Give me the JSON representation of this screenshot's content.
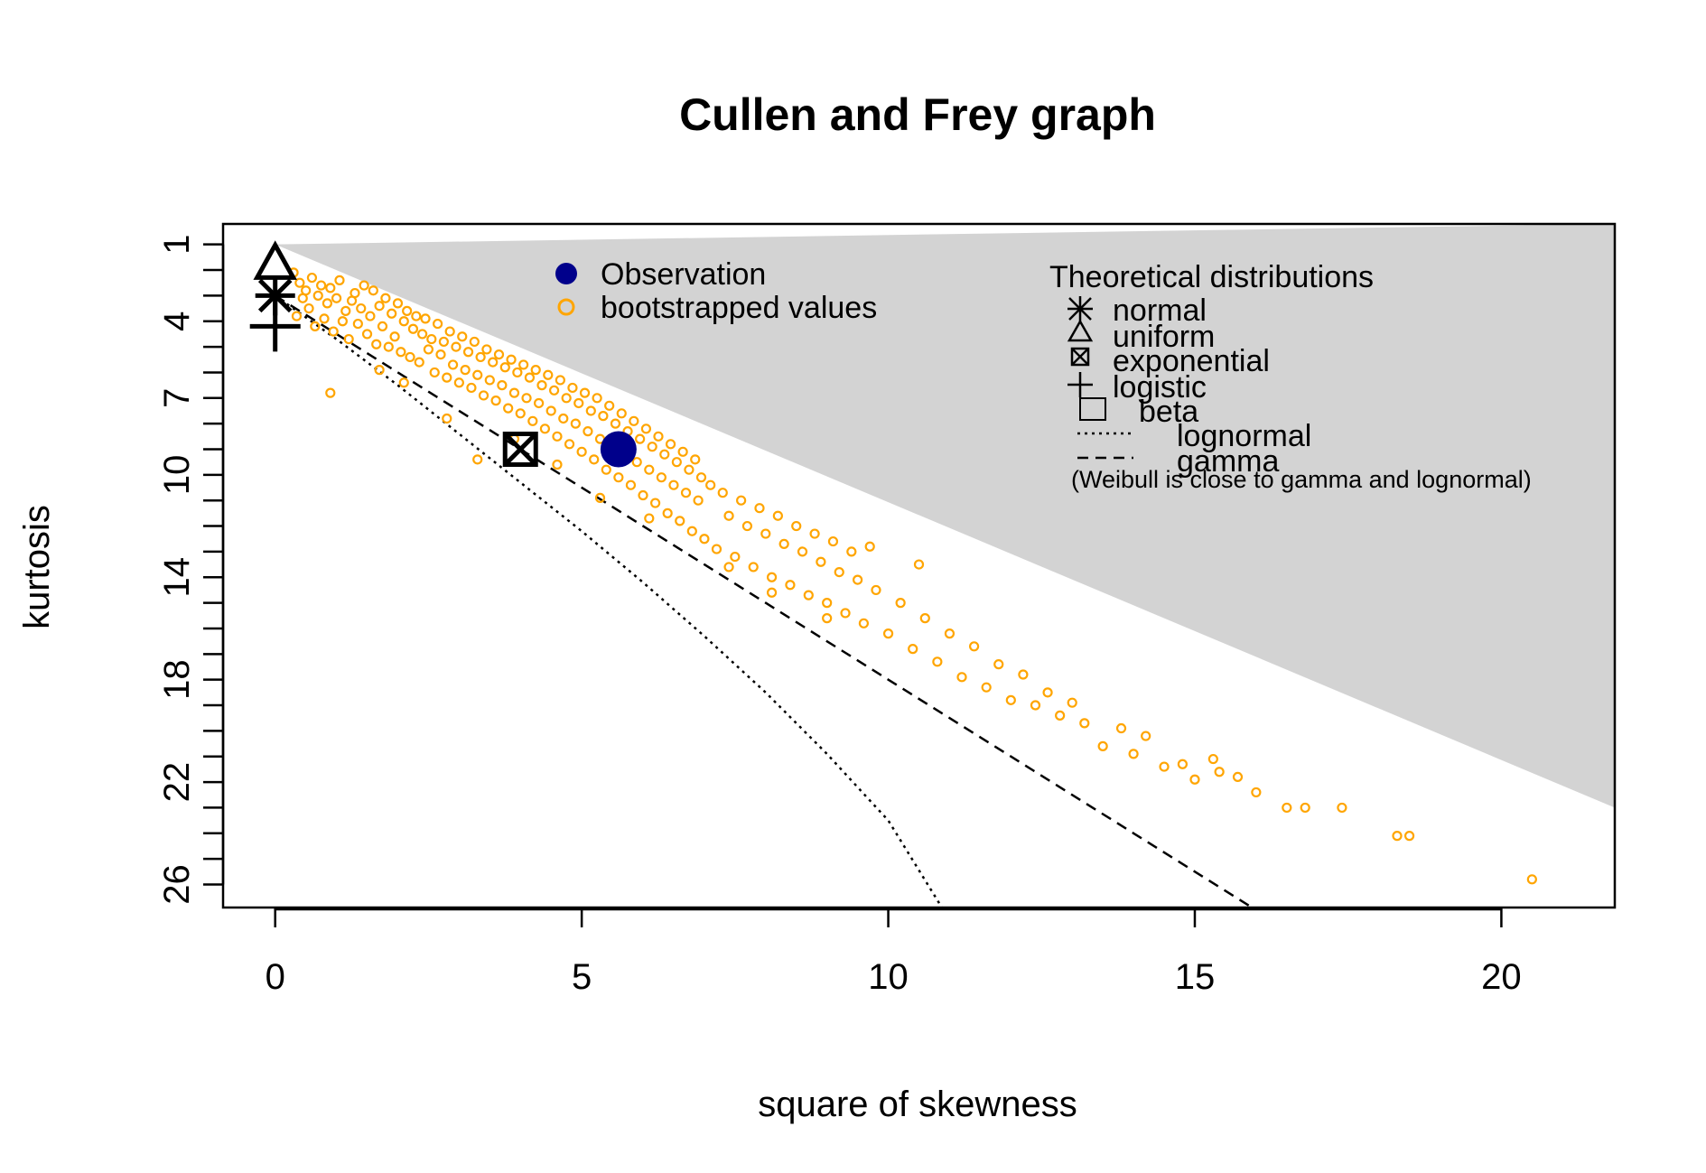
{
  "chart_data": {
    "type": "scatter",
    "title": "Cullen and Frey graph",
    "xlabel": "square of skewness",
    "ylabel": "kurtosis",
    "xlim": [
      -0.85,
      21.85
    ],
    "ylim": [
      26.9,
      0.2
    ],
    "y_reversed": true,
    "grid": false,
    "x_ticks": [
      0,
      5,
      10,
      15,
      20
    ],
    "y_ticks": [
      1,
      4,
      7,
      10,
      14,
      18,
      22,
      26
    ],
    "y_minor_ticks": [
      2,
      3,
      5,
      6,
      8,
      9,
      11,
      12,
      13,
      15,
      16,
      17,
      19,
      20,
      21,
      23,
      24,
      25
    ],
    "observation": {
      "name": "Observation",
      "x": 5.6,
      "y": 9.0,
      "color": "#00008B"
    },
    "bootstrap": {
      "name": "bootstrapped values",
      "color": "#FFA500",
      "points": [
        [
          0.3,
          2.1
        ],
        [
          0.35,
          3.8
        ],
        [
          0.4,
          2.5
        ],
        [
          0.45,
          3.1
        ],
        [
          0.5,
          2.8
        ],
        [
          0.55,
          3.5
        ],
        [
          0.6,
          2.3
        ],
        [
          0.65,
          4.2
        ],
        [
          0.7,
          3.0
        ],
        [
          0.75,
          2.6
        ],
        [
          0.8,
          3.9
        ],
        [
          0.85,
          3.3
        ],
        [
          0.9,
          2.7
        ],
        [
          0.95,
          4.4
        ],
        [
          1.0,
          3.1
        ],
        [
          1.05,
          2.4
        ],
        [
          1.1,
          4.0
        ],
        [
          1.15,
          3.6
        ],
        [
          1.2,
          4.7
        ],
        [
          1.25,
          3.2
        ],
        [
          1.3,
          2.9
        ],
        [
          1.35,
          4.1
        ],
        [
          1.4,
          3.5
        ],
        [
          1.45,
          2.6
        ],
        [
          1.5,
          4.5
        ],
        [
          1.55,
          3.8
        ],
        [
          1.6,
          2.8
        ],
        [
          1.65,
          4.9
        ],
        [
          1.7,
          3.4
        ],
        [
          1.75,
          4.2
        ],
        [
          1.8,
          3.1
        ],
        [
          1.85,
          5.0
        ],
        [
          1.9,
          3.7
        ],
        [
          1.95,
          4.6
        ],
        [
          2.0,
          3.3
        ],
        [
          2.05,
          5.2
        ],
        [
          2.1,
          4.0
        ],
        [
          2.15,
          3.6
        ],
        [
          2.2,
          5.4
        ],
        [
          2.25,
          4.3
        ],
        [
          2.3,
          3.8
        ],
        [
          2.35,
          5.6
        ],
        [
          2.4,
          4.5
        ],
        [
          2.45,
          3.9
        ],
        [
          2.5,
          5.1
        ],
        [
          2.55,
          4.7
        ],
        [
          2.6,
          6.0
        ],
        [
          2.65,
          4.1
        ],
        [
          2.7,
          5.3
        ],
        [
          2.75,
          4.8
        ],
        [
          2.8,
          6.2
        ],
        [
          2.85,
          4.4
        ],
        [
          2.9,
          5.7
        ],
        [
          2.95,
          5.0
        ],
        [
          3.0,
          6.4
        ],
        [
          3.05,
          4.6
        ],
        [
          3.1,
          5.9
        ],
        [
          3.15,
          5.2
        ],
        [
          3.2,
          6.6
        ],
        [
          3.25,
          4.8
        ],
        [
          3.3,
          6.1
        ],
        [
          3.35,
          5.4
        ],
        [
          3.4,
          6.9
        ],
        [
          3.45,
          5.1
        ],
        [
          3.5,
          6.3
        ],
        [
          3.55,
          5.6
        ],
        [
          3.6,
          7.1
        ],
        [
          3.65,
          5.3
        ],
        [
          3.7,
          6.5
        ],
        [
          3.75,
          5.8
        ],
        [
          3.8,
          7.4
        ],
        [
          3.85,
          5.5
        ],
        [
          3.9,
          6.8
        ],
        [
          3.95,
          6.0
        ],
        [
          4.0,
          7.6
        ],
        [
          4.05,
          5.7
        ],
        [
          4.1,
          7.0
        ],
        [
          4.15,
          6.2
        ],
        [
          4.2,
          7.9
        ],
        [
          4.25,
          5.9
        ],
        [
          4.3,
          7.2
        ],
        [
          4.35,
          6.5
        ],
        [
          4.4,
          8.2
        ],
        [
          4.45,
          6.1
        ],
        [
          4.5,
          7.5
        ],
        [
          4.55,
          6.7
        ],
        [
          4.6,
          8.5
        ],
        [
          4.65,
          6.3
        ],
        [
          4.7,
          7.8
        ],
        [
          4.75,
          7.0
        ],
        [
          4.8,
          8.8
        ],
        [
          4.85,
          6.6
        ],
        [
          4.9,
          8.0
        ],
        [
          4.95,
          7.2
        ],
        [
          5.0,
          9.1
        ],
        [
          5.05,
          6.8
        ],
        [
          5.1,
          8.3
        ],
        [
          5.15,
          7.5
        ],
        [
          5.2,
          9.4
        ],
        [
          5.25,
          7.0
        ],
        [
          5.3,
          8.6
        ],
        [
          5.35,
          7.7
        ],
        [
          5.4,
          9.8
        ],
        [
          5.45,
          7.3
        ],
        [
          5.5,
          8.9
        ],
        [
          5.55,
          8.0
        ],
        [
          5.6,
          10.1
        ],
        [
          5.65,
          7.6
        ],
        [
          5.7,
          9.2
        ],
        [
          5.75,
          8.3
        ],
        [
          5.8,
          10.4
        ],
        [
          5.85,
          7.9
        ],
        [
          5.9,
          9.5
        ],
        [
          5.95,
          8.6
        ],
        [
          6.0,
          10.8
        ],
        [
          6.05,
          8.2
        ],
        [
          6.1,
          9.8
        ],
        [
          6.15,
          8.9
        ],
        [
          6.2,
          11.1
        ],
        [
          6.25,
          8.5
        ],
        [
          6.3,
          10.1
        ],
        [
          6.35,
          9.2
        ],
        [
          6.4,
          11.5
        ],
        [
          6.45,
          8.8
        ],
        [
          6.5,
          10.4
        ],
        [
          6.55,
          9.5
        ],
        [
          6.6,
          11.8
        ],
        [
          6.65,
          9.1
        ],
        [
          6.7,
          10.7
        ],
        [
          6.75,
          9.8
        ],
        [
          6.8,
          12.2
        ],
        [
          6.85,
          9.4
        ],
        [
          6.9,
          11.0
        ],
        [
          6.95,
          10.1
        ],
        [
          7.0,
          12.5
        ],
        [
          7.1,
          10.4
        ],
        [
          7.2,
          12.9
        ],
        [
          7.3,
          10.7
        ],
        [
          7.4,
          11.6
        ],
        [
          7.5,
          13.2
        ],
        [
          7.6,
          11.0
        ],
        [
          7.7,
          12.0
        ],
        [
          7.8,
          13.6
        ],
        [
          7.9,
          11.3
        ],
        [
          8.0,
          12.3
        ],
        [
          8.1,
          14.0
        ],
        [
          8.2,
          11.6
        ],
        [
          8.3,
          12.7
        ],
        [
          8.4,
          14.3
        ],
        [
          8.5,
          12.0
        ],
        [
          8.6,
          13.0
        ],
        [
          8.7,
          14.7
        ],
        [
          8.8,
          12.3
        ],
        [
          8.9,
          13.4
        ],
        [
          9.0,
          15.0
        ],
        [
          9.1,
          12.6
        ],
        [
          9.2,
          13.8
        ],
        [
          9.3,
          15.4
        ],
        [
          9.4,
          13.0
        ],
        [
          9.5,
          14.1
        ],
        [
          9.6,
          15.8
        ],
        [
          9.7,
          12.8
        ],
        [
          9.8,
          14.5
        ],
        [
          10.0,
          16.2
        ],
        [
          10.2,
          15.0
        ],
        [
          10.4,
          16.8
        ],
        [
          10.5,
          13.5
        ],
        [
          10.6,
          15.6
        ],
        [
          10.8,
          17.3
        ],
        [
          11.0,
          16.2
        ],
        [
          11.2,
          17.9
        ],
        [
          11.4,
          16.7
        ],
        [
          11.6,
          18.3
        ],
        [
          11.8,
          17.4
        ],
        [
          12.0,
          18.8
        ],
        [
          12.2,
          17.8
        ],
        [
          12.4,
          19.0
        ],
        [
          12.6,
          18.5
        ],
        [
          12.8,
          19.4
        ],
        [
          13.0,
          18.9
        ],
        [
          13.2,
          19.7
        ],
        [
          13.5,
          20.6
        ],
        [
          13.8,
          19.9
        ],
        [
          14.0,
          20.9
        ],
        [
          14.2,
          20.2
        ],
        [
          14.5,
          21.4
        ],
        [
          14.8,
          21.3
        ],
        [
          15.0,
          21.9
        ],
        [
          15.3,
          21.1
        ],
        [
          15.4,
          21.6
        ],
        [
          15.7,
          21.8
        ],
        [
          16.0,
          22.4
        ],
        [
          16.5,
          23.0
        ],
        [
          16.8,
          23.0
        ],
        [
          17.4,
          23.0
        ],
        [
          18.3,
          24.1
        ],
        [
          18.5,
          24.1
        ],
        [
          20.5,
          25.8
        ],
        [
          0.9,
          6.8
        ],
        [
          3.3,
          9.4
        ],
        [
          2.1,
          6.4
        ],
        [
          2.8,
          7.8
        ],
        [
          1.7,
          5.9
        ],
        [
          3.9,
          8.6
        ],
        [
          4.6,
          9.6
        ],
        [
          5.3,
          10.9
        ],
        [
          6.1,
          11.7
        ],
        [
          7.4,
          13.6
        ],
        [
          8.1,
          14.6
        ],
        [
          9.0,
          15.6
        ]
      ]
    },
    "beta_region": {
      "name": "beta",
      "color": "#D3D3D3",
      "upper": [
        [
          0,
          1
        ],
        [
          21.85,
          0.2
        ]
      ],
      "lower": [
        [
          0,
          1
        ],
        [
          21.85,
          23.0
        ]
      ]
    },
    "gamma_line": {
      "name": "gamma",
      "points": [
        [
          0,
          3
        ],
        [
          2,
          6
        ],
        [
          4,
          9
        ],
        [
          6,
          12
        ],
        [
          8,
          15
        ],
        [
          10,
          18
        ],
        [
          12,
          21
        ],
        [
          14,
          24
        ],
        [
          16,
          27
        ]
      ]
    },
    "lognormal_line": {
      "name": "lognormal",
      "points": [
        [
          0,
          3
        ],
        [
          1,
          4.7
        ],
        [
          2,
          6.5
        ],
        [
          3,
          8.4
        ],
        [
          4,
          10.3
        ],
        [
          5,
          12.2
        ],
        [
          6,
          14.2
        ],
        [
          7,
          16.3
        ],
        [
          8,
          18.5
        ],
        [
          9,
          20.9
        ],
        [
          10,
          23.5
        ],
        [
          10.9,
          27
        ]
      ]
    },
    "theoretical_points": [
      {
        "name": "normal",
        "x": 0,
        "y": 3,
        "symbol": "asterisk"
      },
      {
        "name": "uniform",
        "x": 0,
        "y": 1.8,
        "symbol": "triangle"
      },
      {
        "name": "exponential",
        "x": 4,
        "y": 9,
        "symbol": "boxed-x"
      },
      {
        "name": "logistic",
        "x": 0,
        "y": 4.2,
        "symbol": "plus"
      }
    ],
    "legend_observation": {
      "position": "top-center",
      "items": [
        "Observation",
        "bootstrapped values"
      ]
    },
    "legend_theoretical": {
      "position": "top-right",
      "title": "Theoretical distributions",
      "items": [
        "normal",
        "uniform",
        "exponential",
        "logistic",
        "beta",
        "lognormal",
        "gamma"
      ],
      "note": "(Weibull is close to gamma and lognormal)"
    }
  }
}
